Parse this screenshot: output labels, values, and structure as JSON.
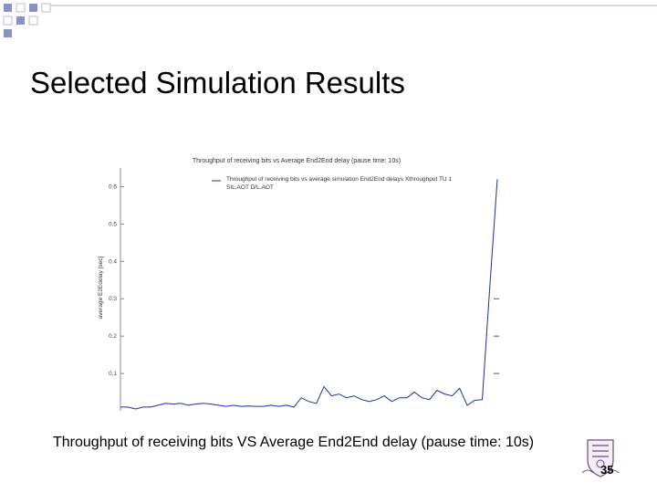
{
  "slide": {
    "title": "Selected Simulation Results",
    "caption": "Throughput of receiving bits VS Average End2End delay (pause time: 10s)",
    "page_number": "35"
  },
  "colors": {
    "series": "#1f2f9c",
    "axis": "#8c8c8c",
    "deco_square": "#2b3a8a"
  },
  "icons": {
    "logo": "university-crest-icon",
    "decoration": "square-grid-decoration"
  },
  "chart_data": {
    "type": "line",
    "title": "Throughput of receiving bits vs Average End2End delay (pause time: 10s)",
    "ylabel": "average E2Edelay [sec]",
    "xlabel": "",
    "legend": {
      "placement": "top-center",
      "entries": [
        "Throughput of receiving bits vs average simulation End2End delays Xthroughput TU 1",
        "SIL.AOT D/L.AOT"
      ]
    },
    "ylim": [
      0,
      0.65
    ],
    "xlim": [
      0,
      100
    ],
    "yticks": [
      0.1,
      0.2,
      0.3,
      0.4,
      0.5,
      0.6
    ],
    "ytick_labels": [
      "0.1",
      "0.2",
      "0.3",
      "0.4",
      "0.5",
      "0.6"
    ],
    "series": [
      {
        "name": "Throughput of receiving bits vs average simulation End2End delays Xthroughput TU 1",
        "x": [
          0,
          2,
          4,
          6,
          8,
          10,
          12,
          14,
          16,
          18,
          20,
          22,
          24,
          26,
          28,
          30,
          32,
          34,
          36,
          38,
          40,
          42,
          44,
          46,
          48,
          50,
          52,
          54,
          56,
          58,
          60,
          62,
          64,
          66,
          68,
          70,
          72,
          74,
          76,
          78,
          80,
          82,
          84,
          86,
          88,
          90,
          92,
          94,
          96,
          98,
          100
        ],
        "y": [
          0.01,
          0.01,
          0.005,
          0.01,
          0.01,
          0.015,
          0.02,
          0.018,
          0.02,
          0.015,
          0.018,
          0.02,
          0.018,
          0.015,
          0.012,
          0.015,
          0.012,
          0.013,
          0.012,
          0.012,
          0.015,
          0.012,
          0.015,
          0.01,
          0.035,
          0.025,
          0.02,
          0.065,
          0.04,
          0.045,
          0.035,
          0.04,
          0.03,
          0.025,
          0.03,
          0.04,
          0.025,
          0.035,
          0.035,
          0.05,
          0.035,
          0.03,
          0.055,
          0.045,
          0.04,
          0.06,
          0.015,
          0.028,
          0.03,
          0.33,
          0.62
        ]
      }
    ],
    "right_markers_y": [
      0.1,
      0.2,
      0.3
    ]
  }
}
